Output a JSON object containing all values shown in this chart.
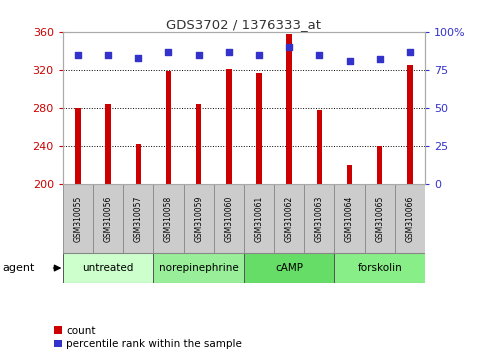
{
  "title": "GDS3702 / 1376333_at",
  "samples": [
    "GSM310055",
    "GSM310056",
    "GSM310057",
    "GSM310058",
    "GSM310059",
    "GSM310060",
    "GSM310061",
    "GSM310062",
    "GSM310063",
    "GSM310064",
    "GSM310065",
    "GSM310066"
  ],
  "bar_values": [
    280,
    284,
    242,
    319,
    284,
    321,
    317,
    358,
    278,
    220,
    240,
    325
  ],
  "dot_values": [
    85,
    85,
    83,
    87,
    85,
    87,
    85,
    90,
    85,
    81,
    82,
    87
  ],
  "bar_color": "#cc0000",
  "dot_color": "#3333cc",
  "ylim_left": [
    200,
    360
  ],
  "ylim_right": [
    0,
    100
  ],
  "yticks_left": [
    200,
    240,
    280,
    320,
    360
  ],
  "yticks_right": [
    0,
    25,
    50,
    75,
    100
  ],
  "ytick_labels_right": [
    "0",
    "25",
    "50",
    "75",
    "100%"
  ],
  "groups": [
    {
      "label": "untreated",
      "start": 0,
      "end": 3,
      "color": "#ccffcc"
    },
    {
      "label": "norepinephrine",
      "start": 3,
      "end": 6,
      "color": "#99ee99"
    },
    {
      "label": "cAMP",
      "start": 6,
      "end": 9,
      "color": "#66dd66"
    },
    {
      "label": "forskolin",
      "start": 9,
      "end": 12,
      "color": "#88ee88"
    }
  ],
  "legend_count_label": "count",
  "legend_pct_label": "percentile rank within the sample",
  "agent_label": "agent",
  "bar_width": 0.18,
  "left_tick_color": "#cc0000",
  "right_tick_color": "#3333cc",
  "title_color": "#333333",
  "sample_box_color": "#cccccc",
  "sample_box_edge": "#888888",
  "grid_color": "black",
  "grid_linestyle": ":"
}
